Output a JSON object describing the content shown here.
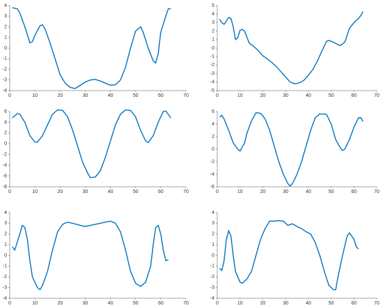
{
  "chart_data": [
    {
      "type": "line",
      "color": "#0072bd",
      "xlim": [
        0,
        70
      ],
      "xticks": [
        0,
        10,
        20,
        30,
        40,
        50,
        60,
        70
      ],
      "ylim": [
        -4,
        4
      ],
      "yticks": [
        -4,
        -3,
        -2,
        -1,
        0,
        1,
        2,
        3,
        4
      ],
      "x": [
        1,
        3,
        4,
        6,
        8,
        9,
        10,
        12,
        13,
        14,
        16,
        18,
        20,
        22,
        24,
        26,
        28,
        30,
        32,
        34,
        36,
        38,
        40,
        42,
        44,
        46,
        48,
        50,
        52,
        53,
        55,
        57,
        58,
        59,
        60,
        62,
        63,
        64
      ],
      "values": [
        3.8,
        3.7,
        3.3,
        2,
        0.5,
        0.6,
        1.2,
        2.1,
        2.2,
        1.8,
        0.5,
        -1,
        -2.5,
        -3.3,
        -3.7,
        -3.8,
        -3.5,
        -3.2,
        -3.0,
        -2.95,
        -3.1,
        -3.3,
        -3.5,
        -3.45,
        -3.0,
        -1.8,
        0,
        1.6,
        2.0,
        1.5,
        0,
        -1.2,
        -1.4,
        -0.5,
        1.5,
        3,
        3.7,
        3.7
      ]
    },
    {
      "type": "line",
      "color": "#0072bd",
      "xlim": [
        0,
        70
      ],
      "xticks": [
        0,
        10,
        20,
        30,
        40,
        50,
        60,
        70
      ],
      "ylim": [
        -5,
        5
      ],
      "yticks": [
        -5,
        -4,
        -3,
        -2,
        -1,
        0,
        1,
        2,
        3,
        4,
        5
      ],
      "x": [
        1,
        2,
        3,
        4,
        5,
        6,
        7,
        8,
        9,
        10,
        11,
        12,
        13,
        14,
        16,
        18,
        20,
        22,
        24,
        26,
        28,
        30,
        32,
        34,
        36,
        38,
        40,
        42,
        44,
        46,
        48,
        49,
        51,
        53,
        54,
        56,
        57,
        58,
        60,
        62,
        63,
        64
      ],
      "values": [
        3.4,
        3,
        2.8,
        3.2,
        3.6,
        3.5,
        2.5,
        1.0,
        1.2,
        2.1,
        2.2,
        2.0,
        1.3,
        0.6,
        0.2,
        -0.3,
        -0.9,
        -1.3,
        -1.7,
        -2.2,
        -2.8,
        -3.4,
        -4.0,
        -4.2,
        -4.1,
        -3.8,
        -3.2,
        -2.5,
        -1.5,
        -0.3,
        0.8,
        0.9,
        0.7,
        0.4,
        0.3,
        0.7,
        1.5,
        2.3,
        3.0,
        3.5,
        3.8,
        4.3
      ]
    },
    {
      "type": "line",
      "color": "#0072bd",
      "xlim": [
        0,
        70
      ],
      "xticks": [
        0,
        10,
        20,
        30,
        40,
        50,
        60,
        70
      ],
      "ylim": [
        -8,
        6
      ],
      "yticks": [
        -8,
        -6,
        -4,
        -2,
        0,
        2,
        4,
        6
      ],
      "x": [
        1,
        3,
        4,
        6,
        8,
        10,
        11,
        13,
        15,
        17,
        19,
        21,
        23,
        25,
        27,
        29,
        31,
        32,
        34,
        36,
        38,
        40,
        42,
        44,
        46,
        48,
        50,
        52,
        54,
        55,
        57,
        59,
        61,
        62,
        64
      ],
      "values": [
        4.8,
        5.6,
        5.5,
        4,
        1.5,
        0.3,
        0.3,
        1.5,
        3.5,
        5.5,
        6.3,
        6.2,
        5,
        2.5,
        -0.5,
        -3.5,
        -5.5,
        -6.3,
        -6.2,
        -5,
        -2.5,
        0.5,
        3.5,
        5.5,
        6.3,
        6.2,
        5,
        2.5,
        0.5,
        0.2,
        1.5,
        4,
        6,
        6.1,
        4.8
      ]
    },
    {
      "type": "line",
      "color": "#0072bd",
      "xlim": [
        0,
        70
      ],
      "xticks": [
        0,
        10,
        20,
        30,
        40,
        50,
        60,
        70
      ],
      "ylim": [
        -6,
        6
      ],
      "yticks": [
        -6,
        -4,
        -2,
        0,
        2,
        4,
        6
      ],
      "x": [
        1,
        2,
        3,
        5,
        7,
        9,
        10,
        12,
        13,
        15,
        17,
        19,
        20,
        21,
        23,
        25,
        27,
        29,
        31,
        32,
        33,
        35,
        37,
        39,
        41,
        43,
        45,
        47,
        48,
        50,
        52,
        54,
        55,
        56,
        58,
        60,
        62,
        63,
        64
      ],
      "values": [
        5.1,
        5.4,
        4.8,
        3,
        1,
        0,
        -0.3,
        1,
        2.5,
        4.5,
        5.8,
        5.7,
        5.3,
        4.8,
        3,
        0.5,
        -2,
        -4,
        -5.5,
        -5.9,
        -5.5,
        -4,
        -2,
        0.5,
        3,
        5,
        5.6,
        5.6,
        5.5,
        4,
        1.5,
        0.2,
        -0.2,
        0,
        1.5,
        3.5,
        5,
        5,
        4.4
      ]
    },
    {
      "type": "line",
      "color": "#0072bd",
      "xlim": [
        0,
        70
      ],
      "xticks": [
        0,
        10,
        20,
        30,
        40,
        50,
        60,
        70
      ],
      "ylim": [
        -4,
        4
      ],
      "yticks": [
        -4,
        -3,
        -2,
        -1,
        0,
        1,
        2,
        3,
        4
      ],
      "x": [
        1,
        2,
        4,
        5,
        6,
        7,
        8,
        9,
        11,
        12,
        13,
        15,
        17,
        19,
        21,
        23,
        25,
        28,
        30,
        34,
        38,
        40,
        42,
        44,
        46,
        48,
        50,
        52,
        54,
        56,
        57,
        58,
        59,
        60,
        61,
        62,
        63
      ],
      "values": [
        0.8,
        0.5,
        2,
        2.8,
        2.6,
        1.5,
        -0.5,
        -2,
        -3,
        -3.2,
        -2.8,
        -1.5,
        0.5,
        2.2,
        2.9,
        3.1,
        3.0,
        2.8,
        2.7,
        2.9,
        3.1,
        3.2,
        3.0,
        2.2,
        0.5,
        -1.5,
        -2.6,
        -2.9,
        -2.5,
        -1,
        1,
        2.6,
        2.8,
        2,
        0.5,
        -0.5,
        -0.4
      ]
    },
    {
      "type": "line",
      "color": "#0072bd",
      "xlim": [
        0,
        70
      ],
      "xticks": [
        0,
        10,
        20,
        30,
        40,
        50,
        60,
        70
      ],
      "ylim": [
        -4,
        4
      ],
      "yticks": [
        -4,
        -3,
        -2,
        -1,
        0,
        1,
        2,
        3,
        4
      ],
      "x": [
        1,
        2,
        3,
        4,
        5,
        6,
        7,
        8,
        10,
        11,
        13,
        15,
        17,
        19,
        21,
        23,
        25,
        27,
        29,
        31,
        33,
        35,
        37,
        39,
        41,
        43,
        45,
        47,
        49,
        51,
        52,
        53,
        55,
        57,
        58,
        60,
        61,
        62
      ],
      "values": [
        -1.2,
        -1.4,
        -0.5,
        1.5,
        2.3,
        1.8,
        0,
        -1.5,
        -2.5,
        -2.6,
        -2.2,
        -1.5,
        0,
        1.5,
        2.5,
        3.2,
        3.2,
        3.25,
        3.2,
        2.8,
        2.95,
        2.7,
        2.5,
        2.2,
        2.0,
        1.2,
        0,
        -1.5,
        -2.8,
        -3.2,
        -3.2,
        -2,
        0,
        1.8,
        2.1,
        1.5,
        0.8,
        0.6
      ]
    }
  ]
}
